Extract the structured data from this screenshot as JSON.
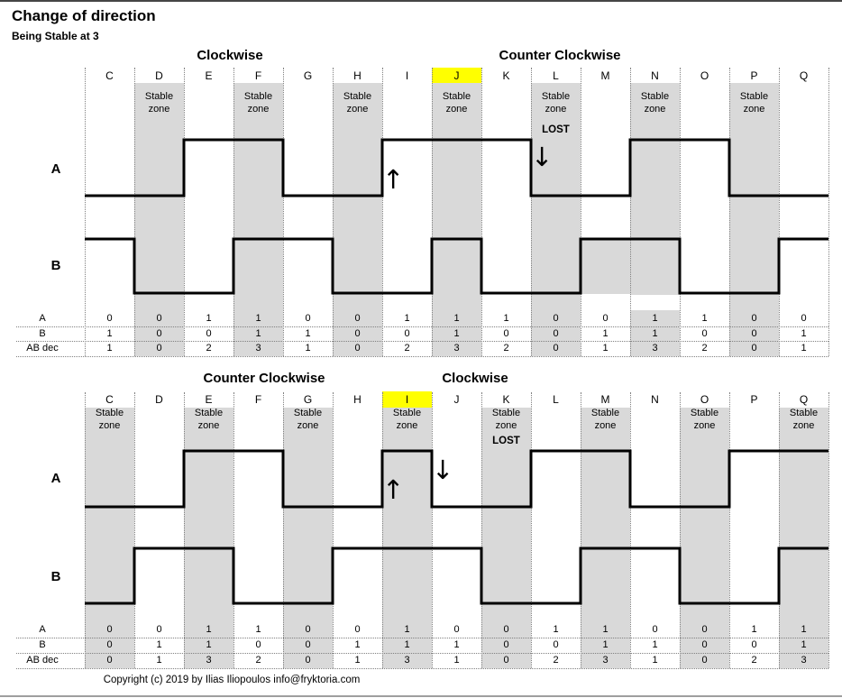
{
  "page": {
    "title": "Change of direction",
    "subtitle": "Being Stable at 3",
    "copyright": "Copyright (c) 2019 by Ilias Iliopoulos info@fryktoria.com"
  },
  "colors": {
    "stable_zone_bg": "#d9d9d9",
    "highlight_bg": "#ffff00",
    "waveform": "#000000",
    "grid_dotted": "#808080"
  },
  "columns": [
    "C",
    "D",
    "E",
    "F",
    "G",
    "H",
    "I",
    "J",
    "K",
    "L",
    "M",
    "N",
    "O",
    "P",
    "Q"
  ],
  "labels": {
    "stable_zone_line1": "Stable",
    "stable_zone_line2": "zone",
    "lost": "LOST",
    "signal_a": "A",
    "signal_b": "B",
    "up_arrow": "↑",
    "down_arrow": "↓"
  },
  "table_row_labels": [
    "A",
    "B",
    "AB dec"
  ],
  "panels": [
    {
      "title_left": "Clockwise",
      "title_right": "Counter Clockwise",
      "highlight_column": "J",
      "lost_column": "L",
      "stable_columns": [
        "D",
        "F",
        "H",
        "J",
        "L",
        "N",
        "P"
      ],
      "up_arrow_column": "I",
      "down_arrow_column": "L",
      "signal_a": [
        0,
        0,
        1,
        1,
        0,
        0,
        1,
        1,
        1,
        0,
        0,
        1,
        1,
        0,
        0
      ],
      "signal_b": [
        1,
        0,
        0,
        1,
        1,
        0,
        0,
        1,
        0,
        0,
        1,
        1,
        0,
        0,
        1
      ],
      "ab_dec": [
        1,
        0,
        2,
        3,
        1,
        0,
        2,
        3,
        2,
        0,
        1,
        3,
        2,
        0,
        1
      ]
    },
    {
      "title_left": "Counter Clockwise",
      "title_right": "Clockwise",
      "highlight_column": "I",
      "lost_column": "K",
      "stable_columns": [
        "C",
        "E",
        "G",
        "I",
        "K",
        "M",
        "O",
        "Q"
      ],
      "up_arrow_column": "I",
      "down_arrow_column": "J",
      "signal_a": [
        0,
        0,
        1,
        1,
        0,
        0,
        1,
        0,
        0,
        1,
        1,
        0,
        0,
        1,
        1
      ],
      "signal_b": [
        0,
        1,
        1,
        0,
        0,
        1,
        1,
        1,
        0,
        0,
        1,
        1,
        0,
        0,
        1
      ],
      "ab_dec": [
        0,
        1,
        3,
        2,
        0,
        1,
        3,
        1,
        0,
        2,
        3,
        1,
        0,
        2,
        3
      ]
    }
  ]
}
